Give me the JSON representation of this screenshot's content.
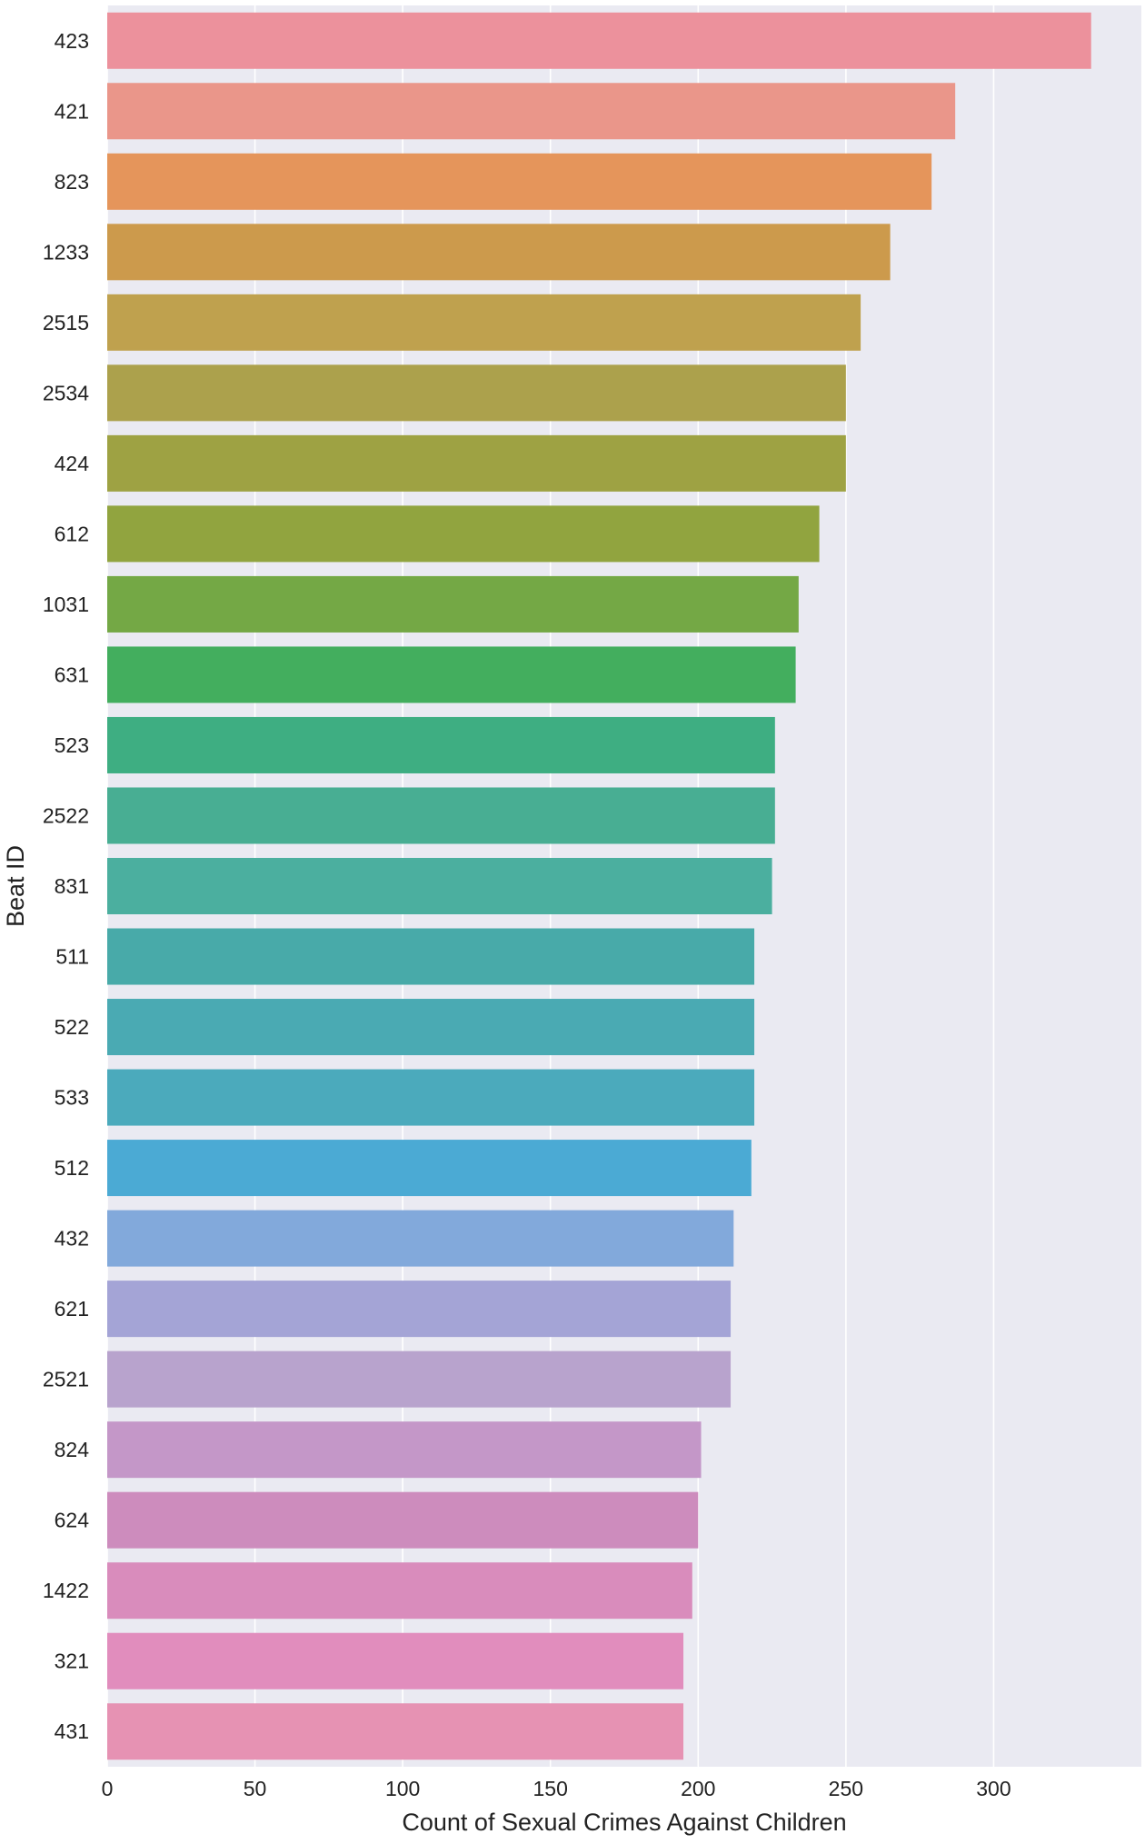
{
  "chart_data": {
    "type": "bar",
    "orientation": "horizontal",
    "title": "",
    "xlabel": "Count of Sexual Crimes Against Children",
    "ylabel": "Beat ID",
    "xlim": [
      0,
      350
    ],
    "xticks": [
      0,
      50,
      100,
      150,
      200,
      250,
      300
    ],
    "grid": true,
    "background": "#eaeaf2",
    "categories": [
      "423",
      "421",
      "823",
      "1233",
      "2515",
      "2534",
      "424",
      "612",
      "1031",
      "631",
      "523",
      "2522",
      "831",
      "511",
      "522",
      "533",
      "512",
      "432",
      "621",
      "2521",
      "824",
      "624",
      "1422",
      "321",
      "431"
    ],
    "values": [
      333,
      287,
      279,
      265,
      255,
      250,
      250,
      241,
      234,
      233,
      226,
      226,
      225,
      219,
      219,
      219,
      218,
      212,
      211,
      211,
      201,
      200,
      198,
      195,
      195
    ],
    "colors": [
      "#ec919c",
      "#ea968a",
      "#e5955b",
      "#cc9a4c",
      "#bfa14e",
      "#aca14c",
      "#9ea243",
      "#91a43f",
      "#74a845",
      "#43ae5e",
      "#3eae82",
      "#48ae93",
      "#4baf9f",
      "#48aaa9",
      "#4aaab3",
      "#4baabc",
      "#4baad4",
      "#82a9db",
      "#a4a4d6",
      "#b8a3cd",
      "#c497c8",
      "#cd8cbd",
      "#d98cbc",
      "#e18dbd",
      "#e692b3"
    ]
  }
}
